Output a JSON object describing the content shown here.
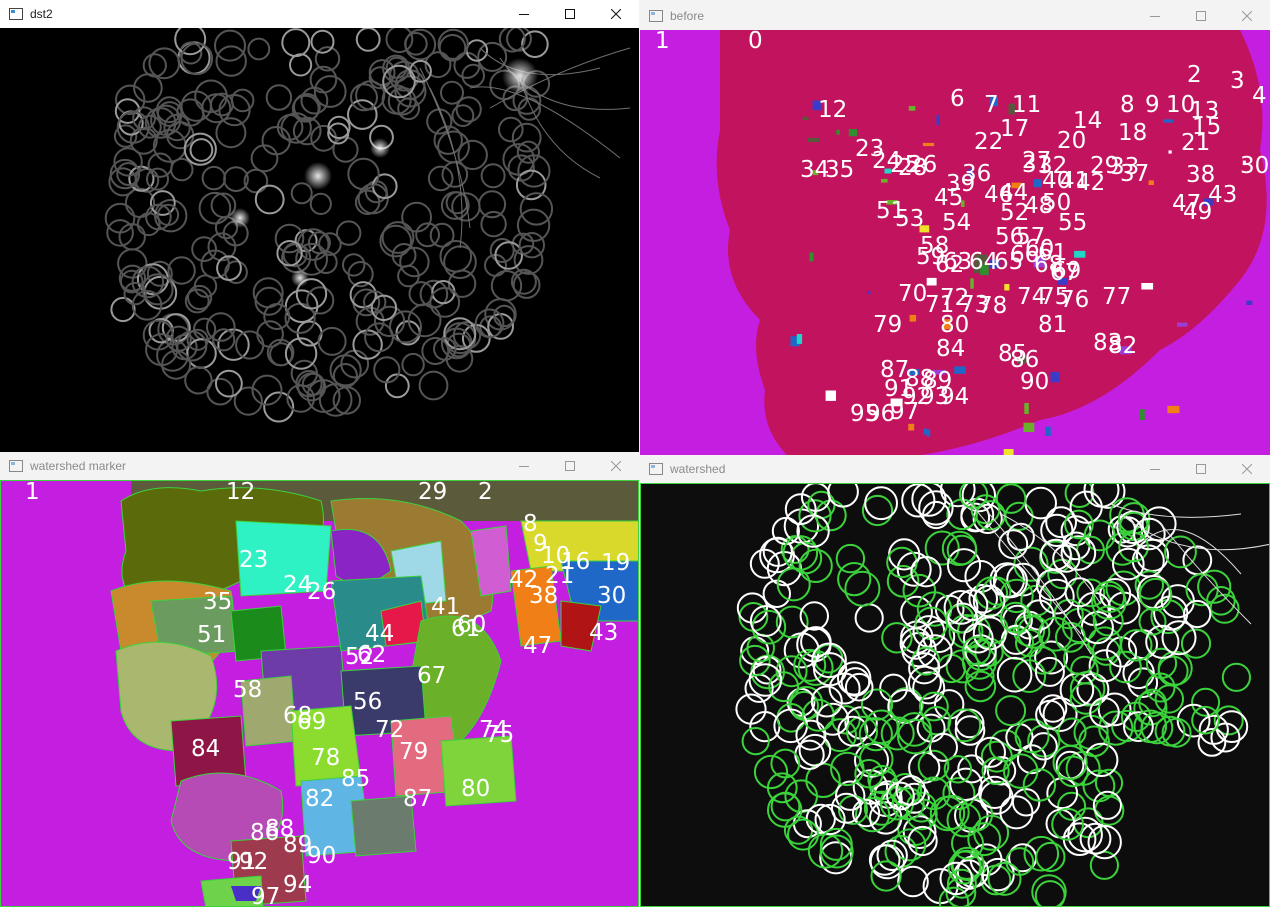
{
  "windows": {
    "dst2": {
      "title": "dst2"
    },
    "before": {
      "title": "before",
      "labels": [
        "1",
        "0",
        "2",
        "3",
        "4",
        "12",
        "6",
        "7",
        "11",
        "8",
        "9",
        "10",
        "13",
        "14",
        "15",
        "17",
        "18",
        "22",
        "20",
        "21",
        "23",
        "24",
        "25",
        "26",
        "27",
        "28",
        "29",
        "30",
        "31",
        "32",
        "33",
        "34",
        "35",
        "36",
        "37",
        "38",
        "39",
        "40",
        "41",
        "42",
        "43",
        "44",
        "45",
        "46",
        "47",
        "48",
        "49",
        "50",
        "51",
        "52",
        "53",
        "54",
        "55",
        "56",
        "57",
        "58",
        "59",
        "60",
        "61",
        "62",
        "63",
        "64",
        "65",
        "66",
        "67",
        "68",
        "69",
        "70",
        "71",
        "72",
        "73",
        "74",
        "75",
        "76",
        "77",
        "78",
        "79",
        "80",
        "81",
        "82",
        "83",
        "84",
        "85",
        "86",
        "87",
        "88",
        "89",
        "90",
        "91",
        "92",
        "93",
        "94",
        "95",
        "96",
        "97"
      ]
    },
    "marker": {
      "title": "watershed marker",
      "labels": [
        "1",
        "12",
        "29",
        "2",
        "8",
        "9",
        "10",
        "16",
        "19",
        "21",
        "23",
        "24",
        "26",
        "30",
        "35",
        "38",
        "41",
        "42",
        "43",
        "44",
        "47",
        "51",
        "52",
        "56",
        "58",
        "60",
        "61",
        "62",
        "67",
        "68",
        "69",
        "72",
        "74",
        "75",
        "78",
        "79",
        "80",
        "82",
        "84",
        "85",
        "86",
        "87",
        "88",
        "89",
        "90",
        "91",
        "92",
        "94",
        "97"
      ]
    },
    "watershed": {
      "title": "watershed"
    }
  },
  "controls": {
    "minimize_icon": "minimize-icon",
    "maximize_icon": "maximize-icon",
    "close_icon": "close-icon"
  },
  "colors": {
    "magenta_bg": "#c41ee0",
    "crimson_region": "#c2145e",
    "olive_region": "#5b6b0b",
    "green_outline": "#3cd23c"
  }
}
